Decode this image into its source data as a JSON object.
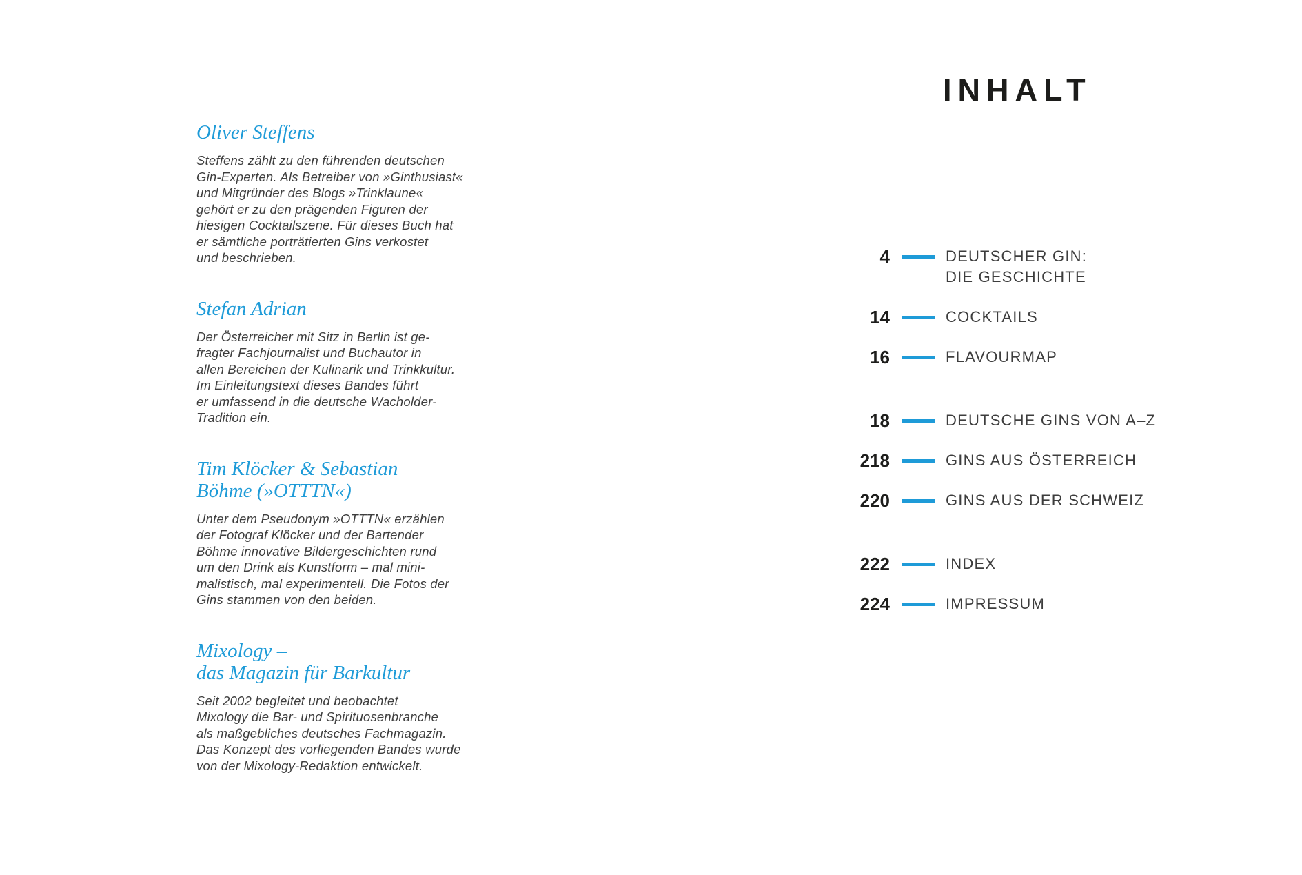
{
  "accent_color": "#1e9bd8",
  "contributors": [
    {
      "name_lines": [
        "Oliver Steffens"
      ],
      "bio_lines": [
        "Steffens zählt zu den führenden deutschen",
        "Gin-Experten. Als Betreiber von »Ginthusiast«",
        "und Mitgründer des Blogs »Trinklaune«",
        "gehört er zu den prägenden Figuren der",
        "hiesigen Cocktailszene. Für dieses Buch hat",
        "er sämtliche porträtierten Gins verkostet",
        "und beschrieben."
      ]
    },
    {
      "name_lines": [
        "Stefan Adrian"
      ],
      "bio_lines": [
        "Der Österreicher mit Sitz in Berlin ist ge-",
        "fragter Fachjournalist und Buchautor in",
        "allen Bereichen der Kulinarik und Trinkkultur.",
        "Im Einleitungstext dieses Bandes führt",
        "er umfassend in die deutsche Wacholder-",
        "Tradition ein."
      ]
    },
    {
      "name_lines": [
        "Tim Klöcker & Sebastian",
        "Böhme (»OTTTN«)"
      ],
      "bio_lines": [
        "Unter dem Pseudonym »OTTTN« erzählen",
        "der Fotograf Klöcker und der Bartender",
        "Böhme innovative Bildergeschichten rund",
        "um den Drink als Kunstform – mal mini-",
        "malistisch, mal experimentell. Die Fotos der",
        "Gins stammen von den beiden."
      ]
    },
    {
      "name_lines": [
        "Mixology –",
        "das Magazin für Barkultur"
      ],
      "bio_lines": [
        "Seit 2002 begleitet und beobachtet",
        "Mixology die Bar- und Spirituosenbranche",
        "als maßgebliches deutsches Fachmagazin.",
        "Das Konzept des vorliegenden Bandes wurde",
        "von der Mixology-Redaktion entwickelt."
      ]
    }
  ],
  "toc": {
    "title": "INHALT",
    "groups": [
      {
        "entries": [
          {
            "page": "4",
            "label_lines": [
              "DEUTSCHER GIN:",
              "DIE GESCHICHTE"
            ]
          },
          {
            "page": "14",
            "label_lines": [
              "COCKTAILS"
            ]
          },
          {
            "page": "16",
            "label_lines": [
              "FLAVOURMAP"
            ]
          }
        ]
      },
      {
        "entries": [
          {
            "page": "18",
            "label_lines": [
              "DEUTSCHE GINS VON A–Z"
            ]
          },
          {
            "page": "218",
            "label_lines": [
              "GINS AUS ÖSTERREICH"
            ]
          },
          {
            "page": "220",
            "label_lines": [
              "GINS AUS DER SCHWEIZ"
            ]
          }
        ]
      },
      {
        "entries": [
          {
            "page": "222",
            "label_lines": [
              "INDEX"
            ]
          },
          {
            "page": "224",
            "label_lines": [
              "IMPRESSUM"
            ]
          }
        ]
      }
    ]
  }
}
